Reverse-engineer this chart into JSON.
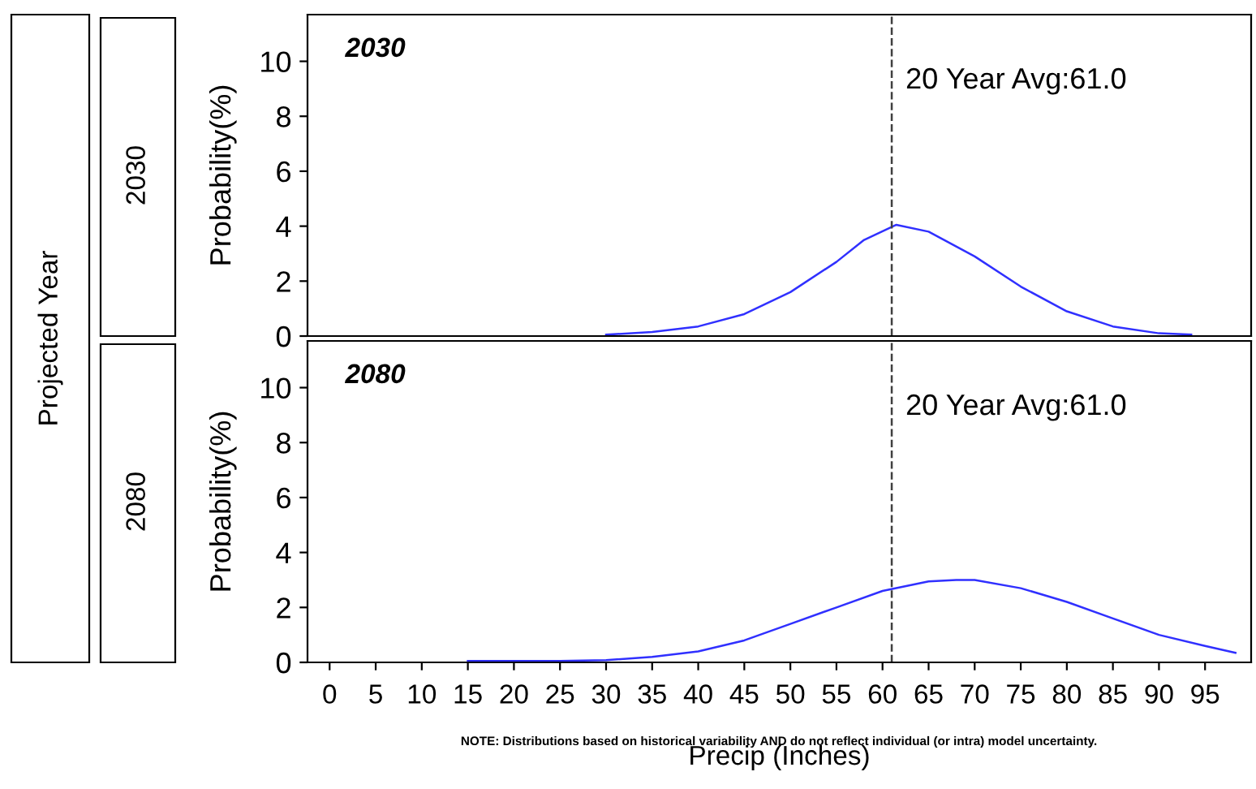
{
  "chart_data": [
    {
      "type": "line",
      "title": "2030",
      "ylabel": "Probability(%)",
      "annotations": [
        "2030",
        "Projected Year"
      ],
      "tick_labels": "y",
      "xlim": [
        -2.4,
        100
      ],
      "ylim": [
        0,
        11.7
      ],
      "yticks": [
        0,
        2,
        4,
        6,
        8,
        10
      ],
      "grid": false,
      "legend": false,
      "ref_lines": [
        {
          "axis": "x",
          "value": 61.0,
          "label": "20 Year Avg:61.0",
          "color": "#404040",
          "line_style": "dashed"
        }
      ],
      "series": [
        {
          "color": "#3030ff",
          "x": [
            30,
            35,
            40,
            45,
            50,
            55,
            58,
            61.5,
            65,
            70,
            75,
            80,
            85,
            90,
            93.5
          ],
          "values": [
            0.05,
            0.15,
            0.35,
            0.8,
            1.6,
            2.7,
            3.5,
            4.05,
            3.8,
            2.9,
            1.8,
            0.9,
            0.35,
            0.1,
            0.05
          ]
        }
      ]
    },
    {
      "type": "line",
      "title": "2080",
      "ylabel": "Probability(%)",
      "xlabel": "Precip (Inches)",
      "annotations": [
        "2080",
        "NOTE: Distributions based on historical variability AND do not reflect individual (or intra) model uncertainty."
      ],
      "xlim": [
        -2.4,
        100
      ],
      "xticks": [
        0,
        5,
        10,
        15,
        20,
        25,
        30,
        35,
        40,
        45,
        50,
        55,
        60,
        65,
        70,
        75,
        80,
        85,
        90,
        95
      ],
      "ylim": [
        0,
        11.7
      ],
      "yticks": [
        0,
        2,
        4,
        6,
        8,
        10
      ],
      "grid": false,
      "legend": false,
      "ref_lines": [
        {
          "axis": "x",
          "value": 61.0,
          "label": "20 Year Avg:61.0",
          "color": "#404040",
          "line_style": "dashed"
        }
      ],
      "series": [
        {
          "color": "#3030ff",
          "x": [
            15,
            20,
            25,
            30,
            35,
            40,
            45,
            50,
            55,
            60,
            65,
            68,
            70,
            75,
            80,
            85,
            90,
            95,
            98.3
          ],
          "values": [
            0.05,
            0.05,
            0.05,
            0.08,
            0.2,
            0.4,
            0.8,
            1.4,
            2.0,
            2.6,
            2.95,
            3.0,
            3.0,
            2.7,
            2.2,
            1.6,
            1.0,
            0.6,
            0.35
          ]
        }
      ]
    }
  ]
}
